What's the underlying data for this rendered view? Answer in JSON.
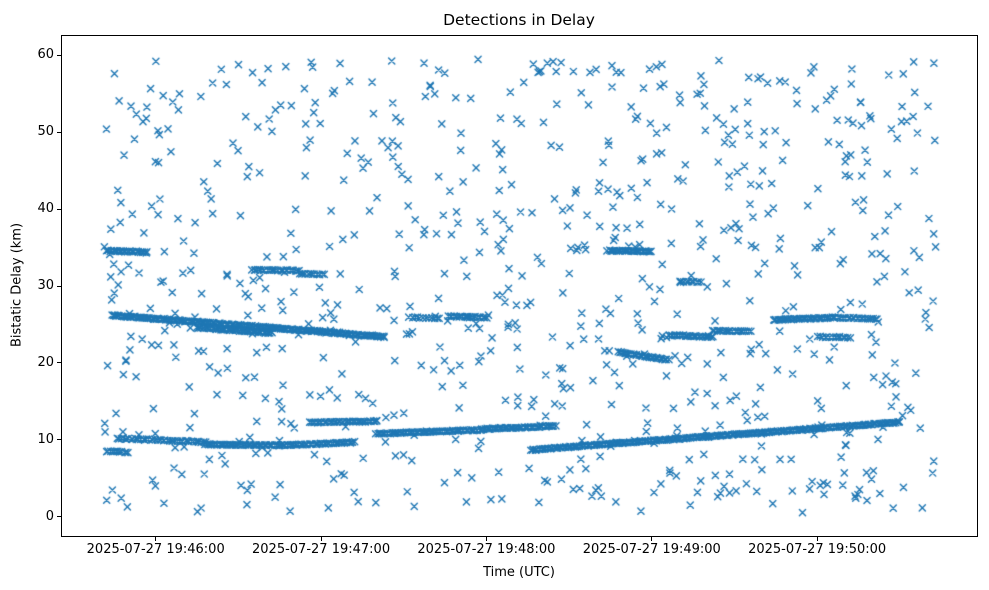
{
  "chart_data": {
    "type": "scatter",
    "title": "Detections in Delay",
    "xlabel": "Time (UTC)",
    "ylabel": "Bistatic Delay (km)",
    "marker": "x",
    "marker_color": "#1f77b4",
    "legend": "none",
    "grid": false,
    "x_axis": {
      "unit": "seconds after 2025-07-27 19:45:00 UTC",
      "lim": [
        26,
        358
      ],
      "ticks": [
        60,
        120,
        180,
        240,
        300
      ],
      "tick_labels": [
        "2025-07-27 19:46:00",
        "2025-07-27 19:47:00",
        "2025-07-27 19:48:00",
        "2025-07-27 19:49:00",
        "2025-07-27 19:50:00"
      ]
    },
    "y_axis": {
      "lim": [
        -2.5,
        62.5
      ],
      "ticks": [
        0,
        10,
        20,
        30,
        40,
        50,
        60
      ],
      "tick_labels": [
        "0",
        "10",
        "20",
        "30",
        "40",
        "50",
        "60"
      ]
    },
    "tracks": [
      {
        "t0": 44,
        "t1": 143,
        "y0": 26.2,
        "y1": 23.4,
        "n": 230,
        "j": 0.12
      },
      {
        "t0": 75,
        "t1": 102,
        "y0": 24.6,
        "y1": 23.9,
        "n": 55,
        "j": 0.1
      },
      {
        "t0": 42,
        "t1": 57,
        "y0": 34.6,
        "y1": 34.4,
        "n": 30,
        "j": 0.1
      },
      {
        "t0": 42,
        "t1": 50,
        "y0": 8.5,
        "y1": 8.4,
        "n": 12,
        "j": 0.08
      },
      {
        "t0": 46,
        "t1": 78,
        "y0": 10.2,
        "y1": 9.7,
        "n": 45,
        "j": 0.1
      },
      {
        "t0": 78,
        "t1": 108,
        "y0": 9.4,
        "y1": 9.3,
        "n": 60,
        "j": 0.08
      },
      {
        "t0": 108,
        "t1": 132,
        "y0": 9.3,
        "y1": 9.7,
        "n": 45,
        "j": 0.08
      },
      {
        "t0": 116,
        "t1": 140,
        "y0": 12.3,
        "y1": 12.4,
        "n": 40,
        "j": 0.08
      },
      {
        "t0": 140,
        "t1": 178,
        "y0": 10.8,
        "y1": 11.3,
        "n": 70,
        "j": 0.08
      },
      {
        "t0": 178,
        "t1": 205,
        "y0": 11.4,
        "y1": 11.8,
        "n": 55,
        "j": 0.08
      },
      {
        "t0": 196,
        "t1": 330,
        "y0": 8.7,
        "y1": 12.3,
        "n": 270,
        "j": 0.09
      },
      {
        "t0": 224,
        "t1": 240,
        "y0": 34.6,
        "y1": 34.5,
        "n": 32,
        "j": 0.08
      },
      {
        "t0": 228,
        "t1": 246,
        "y0": 21.4,
        "y1": 20.4,
        "n": 36,
        "j": 0.08
      },
      {
        "t0": 246,
        "t1": 262,
        "y0": 23.6,
        "y1": 23.4,
        "n": 30,
        "j": 0.1
      },
      {
        "t0": 95,
        "t1": 112,
        "y0": 32.1,
        "y1": 32.0,
        "n": 26,
        "j": 0.1
      },
      {
        "t0": 112,
        "t1": 121,
        "y0": 31.6,
        "y1": 31.5,
        "n": 12,
        "j": 0.08
      },
      {
        "t0": 166,
        "t1": 180,
        "y0": 26.1,
        "y1": 25.9,
        "n": 22,
        "j": 0.08
      },
      {
        "t0": 152,
        "t1": 163,
        "y0": 25.9,
        "y1": 25.8,
        "n": 12,
        "j": 0.08
      },
      {
        "t0": 284,
        "t1": 306,
        "y0": 25.6,
        "y1": 25.9,
        "n": 40,
        "j": 0.1
      },
      {
        "t0": 306,
        "t1": 322,
        "y0": 25.9,
        "y1": 25.7,
        "n": 22,
        "j": 0.1
      },
      {
        "t0": 262,
        "t1": 276,
        "y0": 24.2,
        "y1": 24.1,
        "n": 20,
        "j": 0.08
      },
      {
        "t0": 300,
        "t1": 312,
        "y0": 23.4,
        "y1": 23.3,
        "n": 14,
        "j": 0.08
      },
      {
        "t0": 250,
        "t1": 258,
        "y0": 30.6,
        "y1": 30.5,
        "n": 10,
        "j": 0.08
      }
    ],
    "noise": {
      "count": 800,
      "t_range": [
        41,
        343
      ],
      "y_range": [
        0.5,
        59.5
      ],
      "seed": 20250727
    }
  }
}
